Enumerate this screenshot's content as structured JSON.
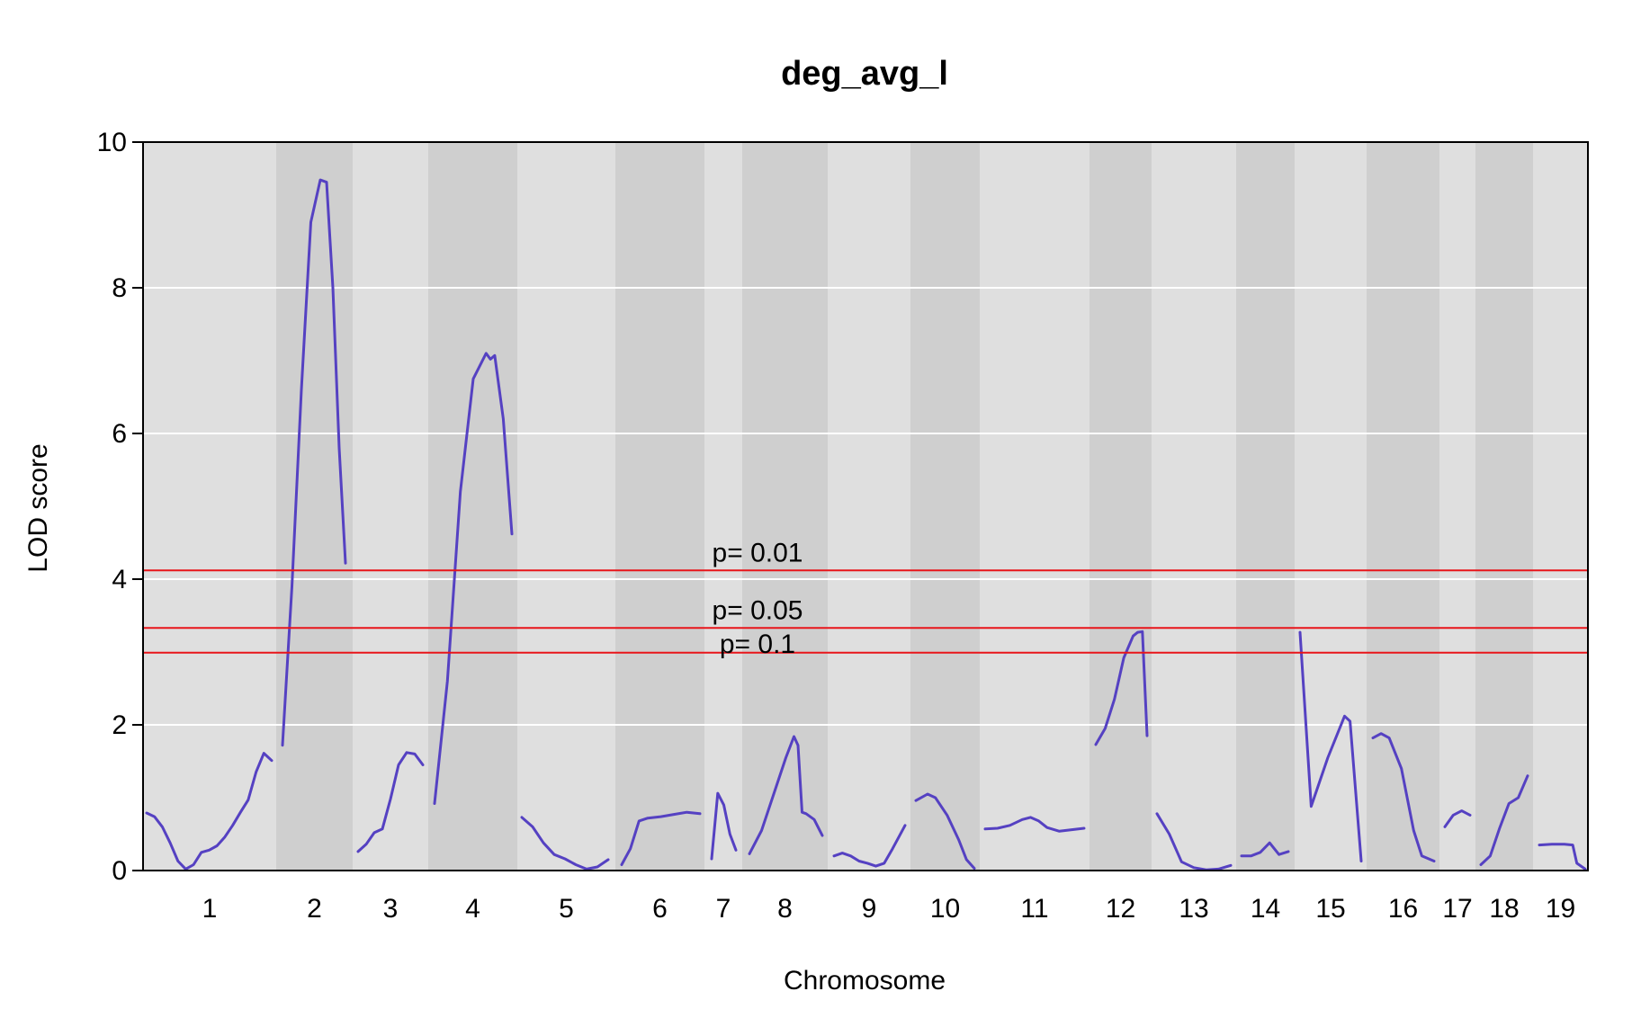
{
  "chart_data": {
    "type": "line",
    "title": "deg_avg_l",
    "xlabel": "Chromosome",
    "ylabel": "LOD score",
    "ylim": [
      0,
      10
    ],
    "yticks": [
      "0",
      "2",
      "4",
      "6",
      "8",
      "10"
    ],
    "chromosomes": [
      "1",
      "2",
      "3",
      "4",
      "5",
      "6",
      "7",
      "8",
      "9",
      "10",
      "11",
      "12",
      "13",
      "14",
      "15",
      "16",
      "17",
      "18",
      "19"
    ],
    "colors": {
      "curve": "#5541c2",
      "threshold": "#e8151a",
      "band_light": "#dfdfdf",
      "band_dark": "#cfcfcf",
      "grid": "#ffffff"
    },
    "thresholds": [
      {
        "label": "p= 0.01",
        "value": 4.12
      },
      {
        "label": "p= 0.05",
        "value": 3.33
      },
      {
        "label": "p= 0.1",
        "value": 2.99
      }
    ],
    "series_by_chromosome": [
      {
        "chr": "1",
        "points": [
          [
            0,
            0.79
          ],
          [
            2,
            0.74
          ],
          [
            4,
            0.6
          ],
          [
            6,
            0.38
          ],
          [
            8,
            0.13
          ],
          [
            10,
            0.02
          ],
          [
            12,
            0.08
          ],
          [
            14,
            0.25
          ],
          [
            16,
            0.28
          ],
          [
            18,
            0.34
          ],
          [
            20,
            0.46
          ],
          [
            22,
            0.62
          ],
          [
            24,
            0.8
          ],
          [
            26,
            0.97
          ],
          [
            28,
            1.35
          ],
          [
            30,
            1.61
          ],
          [
            32,
            1.51
          ]
        ]
      },
      {
        "chr": "2",
        "points": [
          [
            0,
            1.72
          ],
          [
            3,
            3.9
          ],
          [
            6,
            6.6
          ],
          [
            9,
            8.9
          ],
          [
            12,
            9.48
          ],
          [
            14,
            9.45
          ],
          [
            16,
            8.0
          ],
          [
            18,
            5.8
          ],
          [
            20,
            4.22
          ]
        ]
      },
      {
        "chr": "3",
        "points": [
          [
            0,
            0.26
          ],
          [
            2,
            0.36
          ],
          [
            4,
            0.52
          ],
          [
            6,
            0.57
          ],
          [
            8,
            0.98
          ],
          [
            10,
            1.45
          ],
          [
            12,
            1.62
          ],
          [
            14,
            1.6
          ],
          [
            16,
            1.45
          ]
        ]
      },
      {
        "chr": "4",
        "points": [
          [
            0,
            0.92
          ],
          [
            3,
            2.6
          ],
          [
            6,
            5.2
          ],
          [
            9,
            6.75
          ],
          [
            12,
            7.1
          ],
          [
            13,
            7.02
          ],
          [
            14,
            7.07
          ],
          [
            16,
            6.2
          ],
          [
            18,
            4.62
          ]
        ]
      },
      {
        "chr": "5",
        "points": [
          [
            0,
            0.73
          ],
          [
            3,
            0.6
          ],
          [
            6,
            0.38
          ],
          [
            9,
            0.22
          ],
          [
            12,
            0.16
          ],
          [
            15,
            0.08
          ],
          [
            18,
            0.02
          ],
          [
            21,
            0.05
          ],
          [
            24,
            0.15
          ]
        ]
      },
      {
        "chr": "6",
        "points": [
          [
            0,
            0.08
          ],
          [
            2,
            0.3
          ],
          [
            4,
            0.68
          ],
          [
            6,
            0.72
          ],
          [
            9,
            0.74
          ],
          [
            12,
            0.77
          ],
          [
            15,
            0.8
          ],
          [
            18,
            0.78
          ]
        ]
      },
      {
        "chr": "7",
        "points": [
          [
            0,
            0.16
          ],
          [
            2,
            1.06
          ],
          [
            4,
            0.9
          ],
          [
            6,
            0.5
          ],
          [
            8,
            0.28
          ]
        ]
      },
      {
        "chr": "8",
        "points": [
          [
            0,
            0.23
          ],
          [
            3,
            0.55
          ],
          [
            6,
            1.05
          ],
          [
            9,
            1.55
          ],
          [
            11,
            1.84
          ],
          [
            12,
            1.72
          ],
          [
            13,
            0.8
          ],
          [
            14,
            0.78
          ],
          [
            16,
            0.7
          ],
          [
            18,
            0.48
          ]
        ]
      },
      {
        "chr": "9",
        "points": [
          [
            0,
            0.2
          ],
          [
            2,
            0.24
          ],
          [
            4,
            0.2
          ],
          [
            6,
            0.13
          ],
          [
            8,
            0.1
          ],
          [
            10,
            0.06
          ],
          [
            12,
            0.1
          ],
          [
            14,
            0.3
          ],
          [
            17,
            0.62
          ]
        ]
      },
      {
        "chr": "10",
        "points": [
          [
            0,
            0.96
          ],
          [
            3,
            1.05
          ],
          [
            5,
            1.0
          ],
          [
            8,
            0.76
          ],
          [
            11,
            0.42
          ],
          [
            13,
            0.15
          ],
          [
            15,
            0.03
          ]
        ]
      },
      {
        "chr": "11",
        "points": [
          [
            0,
            0.57
          ],
          [
            3,
            0.58
          ],
          [
            6,
            0.62
          ],
          [
            9,
            0.7
          ],
          [
            11,
            0.73
          ],
          [
            13,
            0.68
          ],
          [
            15,
            0.59
          ],
          [
            18,
            0.54
          ],
          [
            21,
            0.56
          ],
          [
            24,
            0.58
          ]
        ]
      },
      {
        "chr": "12",
        "points": [
          [
            0,
            1.73
          ],
          [
            2,
            1.95
          ],
          [
            4,
            2.35
          ],
          [
            6,
            2.92
          ],
          [
            8,
            3.22
          ],
          [
            9,
            3.27
          ],
          [
            10,
            3.28
          ],
          [
            11,
            1.85
          ]
        ]
      },
      {
        "chr": "13",
        "points": [
          [
            0,
            0.78
          ],
          [
            3,
            0.5
          ],
          [
            6,
            0.12
          ],
          [
            9,
            0.04
          ],
          [
            12,
            0.01
          ],
          [
            15,
            0.02
          ],
          [
            18,
            0.07
          ]
        ]
      },
      {
        "chr": "14",
        "points": [
          [
            0,
            0.2
          ],
          [
            2,
            0.2
          ],
          [
            4,
            0.25
          ],
          [
            6,
            0.38
          ],
          [
            8,
            0.22
          ],
          [
            10,
            0.26
          ]
        ]
      },
      {
        "chr": "15",
        "points": [
          [
            0,
            3.27
          ],
          [
            2,
            0.88
          ],
          [
            5,
            1.55
          ],
          [
            8,
            2.12
          ],
          [
            9,
            2.05
          ],
          [
            11,
            0.13
          ]
        ]
      },
      {
        "chr": "16",
        "points": [
          [
            0,
            1.82
          ],
          [
            2,
            1.88
          ],
          [
            4,
            1.82
          ],
          [
            7,
            1.4
          ],
          [
            10,
            0.55
          ],
          [
            12,
            0.2
          ],
          [
            15,
            0.13
          ]
        ]
      },
      {
        "chr": "17",
        "points": [
          [
            0,
            0.6
          ],
          [
            2,
            0.76
          ],
          [
            4,
            0.82
          ],
          [
            6,
            0.76
          ]
        ]
      },
      {
        "chr": "18",
        "points": [
          [
            0,
            0.08
          ],
          [
            2,
            0.2
          ],
          [
            4,
            0.58
          ],
          [
            6,
            0.92
          ],
          [
            8,
            1.0
          ],
          [
            10,
            1.3
          ]
        ]
      },
      {
        "chr": "19",
        "points": [
          [
            0,
            0.35
          ],
          [
            3,
            0.36
          ],
          [
            6,
            0.36
          ],
          [
            8,
            0.35
          ],
          [
            9,
            0.1
          ],
          [
            11,
            0.02
          ]
        ]
      }
    ]
  }
}
